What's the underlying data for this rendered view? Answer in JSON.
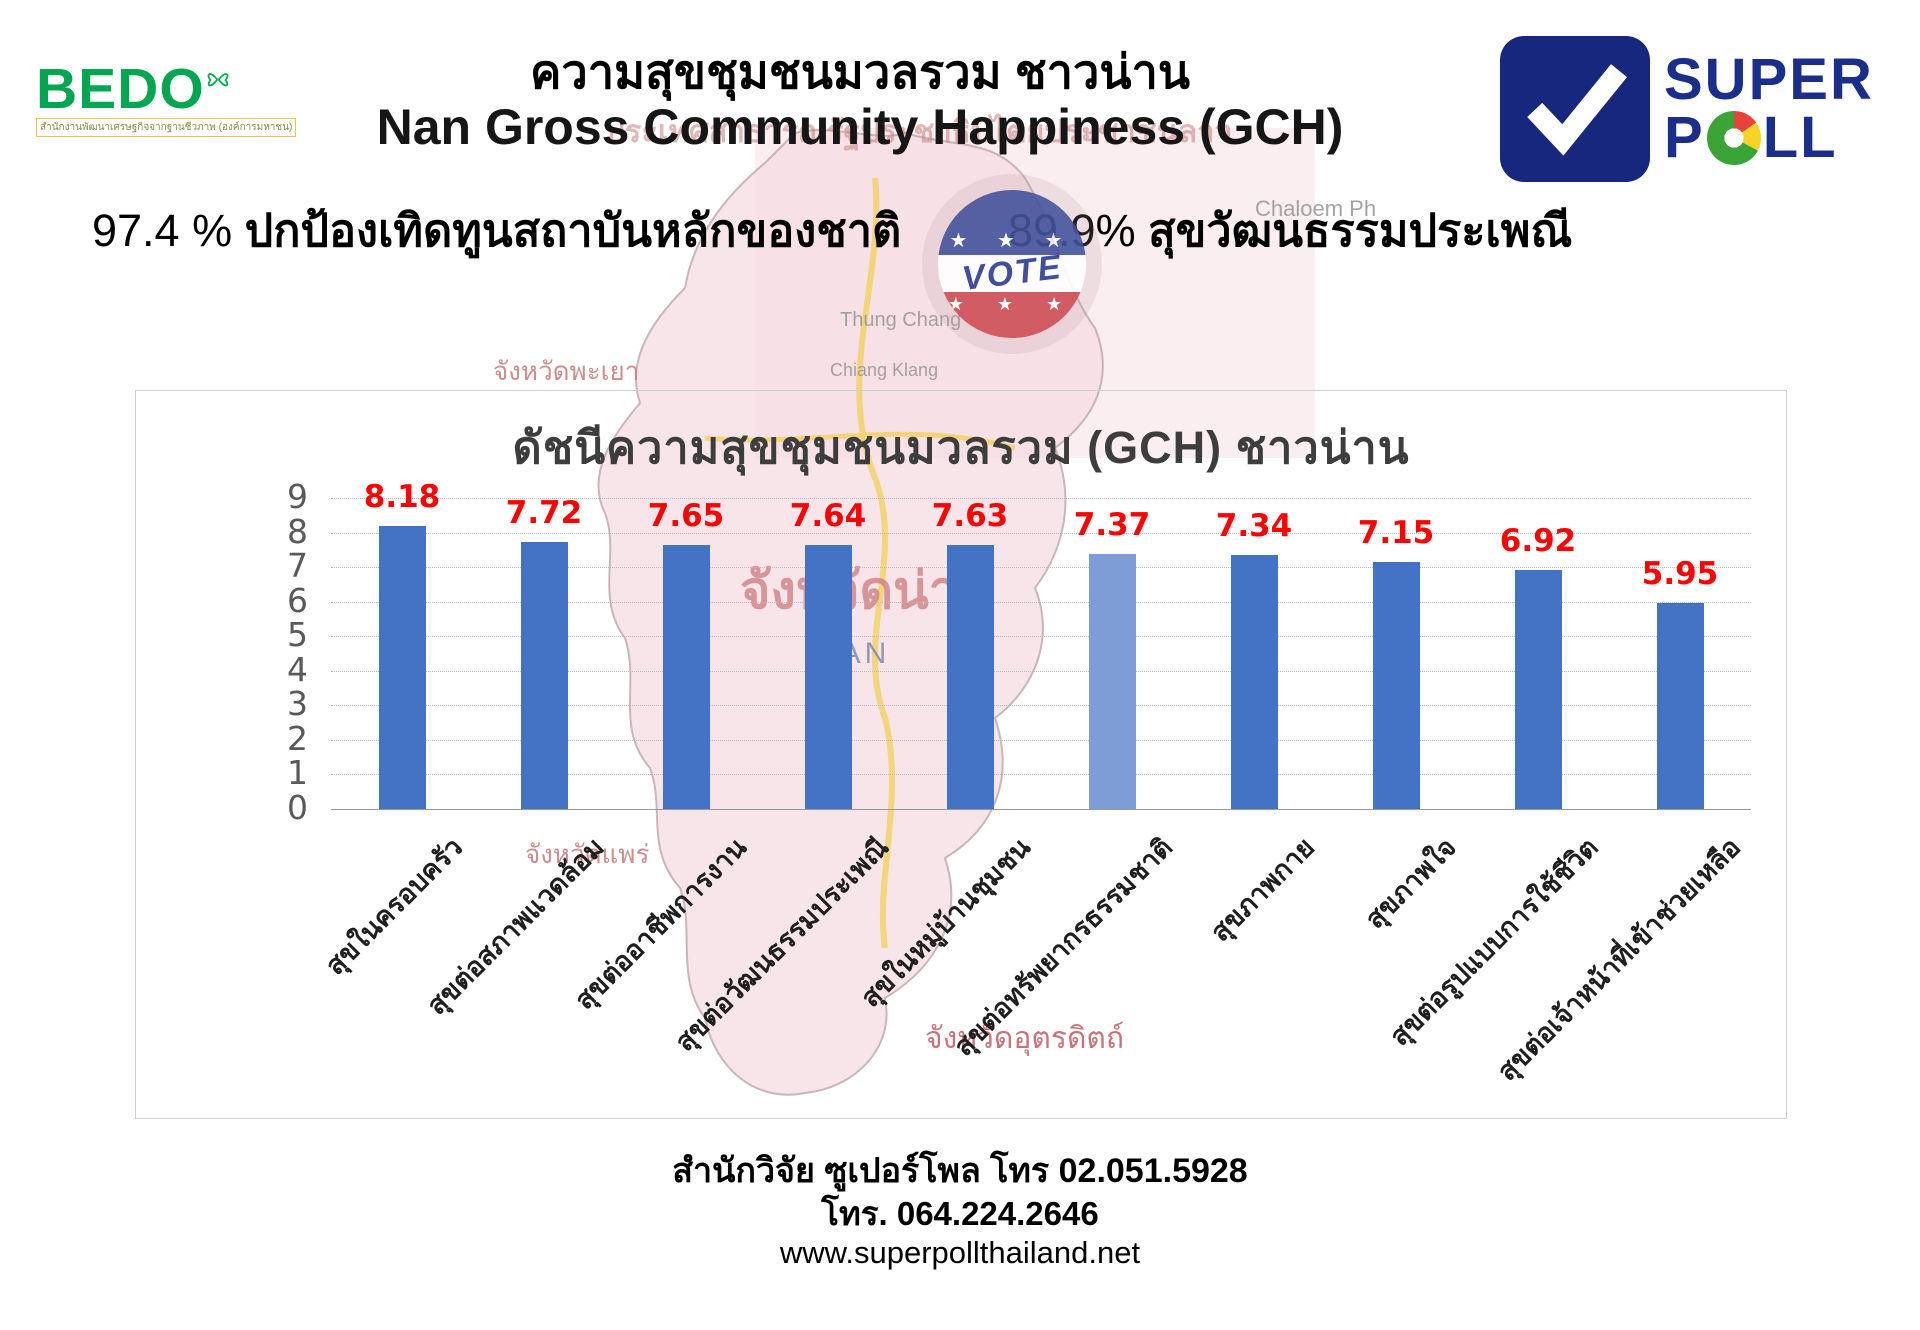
{
  "header": {
    "bedo": {
      "name": "BEDO",
      "tagline": "สำนักงานพัฒนาเศรษฐกิจจากฐานชีวภาพ (องค์การมหาชน)"
    },
    "title_line1": "ความสุขชุมชนมวลรวม  ชาวน่าน",
    "title_line2": "Nan Gross Community Happiness (GCH)",
    "superpoll": {
      "word1": "SUPER",
      "word2_start": "P",
      "word2_end": "LL"
    }
  },
  "stats": {
    "left_value": "97.4 %",
    "left_label": "ปกป้องเทิดทูนสถาบันหลักของชาติ",
    "right_value": "89.9%",
    "right_label": "สุขวัฒนธรรมประเพณี"
  },
  "vote_badge": {
    "text": "VOTE"
  },
  "chart_data": {
    "type": "bar",
    "title": "ดัชนีความสุขชุมชนมวลรวม (GCH) ชาวน่าน",
    "categories": [
      "สุขในครอบครัว",
      "สุขต่อสภาพแวดล้อม",
      "สุขต่ออาชีพการงาน",
      "สุขต่อวัฒนธรรมประเพณี",
      "สุขในหมู่บ้านชุมชน",
      "สุขต่อทรัพยากรธรรมชาติ",
      "สุขภาพกาย",
      "สุขภาพใจ",
      "สุขต่อรูปแบบการใช้ชีวิต",
      "สุขต่อเจ้าหน้าที่เข้าช่วยเหลือ"
    ],
    "values": [
      8.18,
      7.72,
      7.65,
      7.64,
      7.63,
      7.37,
      7.34,
      7.15,
      6.92,
      5.95
    ],
    "xlabel": "",
    "ylabel": "",
    "ylim": [
      0,
      9
    ],
    "yticks": [
      0,
      1,
      2,
      3,
      4,
      5,
      6,
      7,
      8,
      9
    ],
    "grid": true,
    "legend": false,
    "bar_color": "#4472C4",
    "bar_colors": [
      "#4472C4",
      "#4472C4",
      "#4472C4",
      "#4472C4",
      "#4472C4",
      "#7E9CD6",
      "#4472C4",
      "#4472C4",
      "#4472C4",
      "#4472C4"
    ],
    "value_label_color": "#FF0000"
  },
  "background_map": {
    "laos_text": "ประเทศสาธารณรัฐประชาธิปไตยประชาชนลาว",
    "province_north": "จังหวัดพะเยา",
    "province_main": "จังหวัดน่าน",
    "province_main_en": "NAN",
    "province_south_west": "จังหวัดแพร่",
    "province_south": "จังหวัดอุตรดิตถ์",
    "town1": "Thung Chang",
    "town2": "Chiang Klang",
    "town3": "Chaloem Ph"
  },
  "footer": {
    "line1": "สำนักวิจัย ซูเปอร์โพล โทร 02.051.5928",
    "line2": "โทร. 064.224.2646",
    "line3": "www.superpollthailand.net"
  }
}
